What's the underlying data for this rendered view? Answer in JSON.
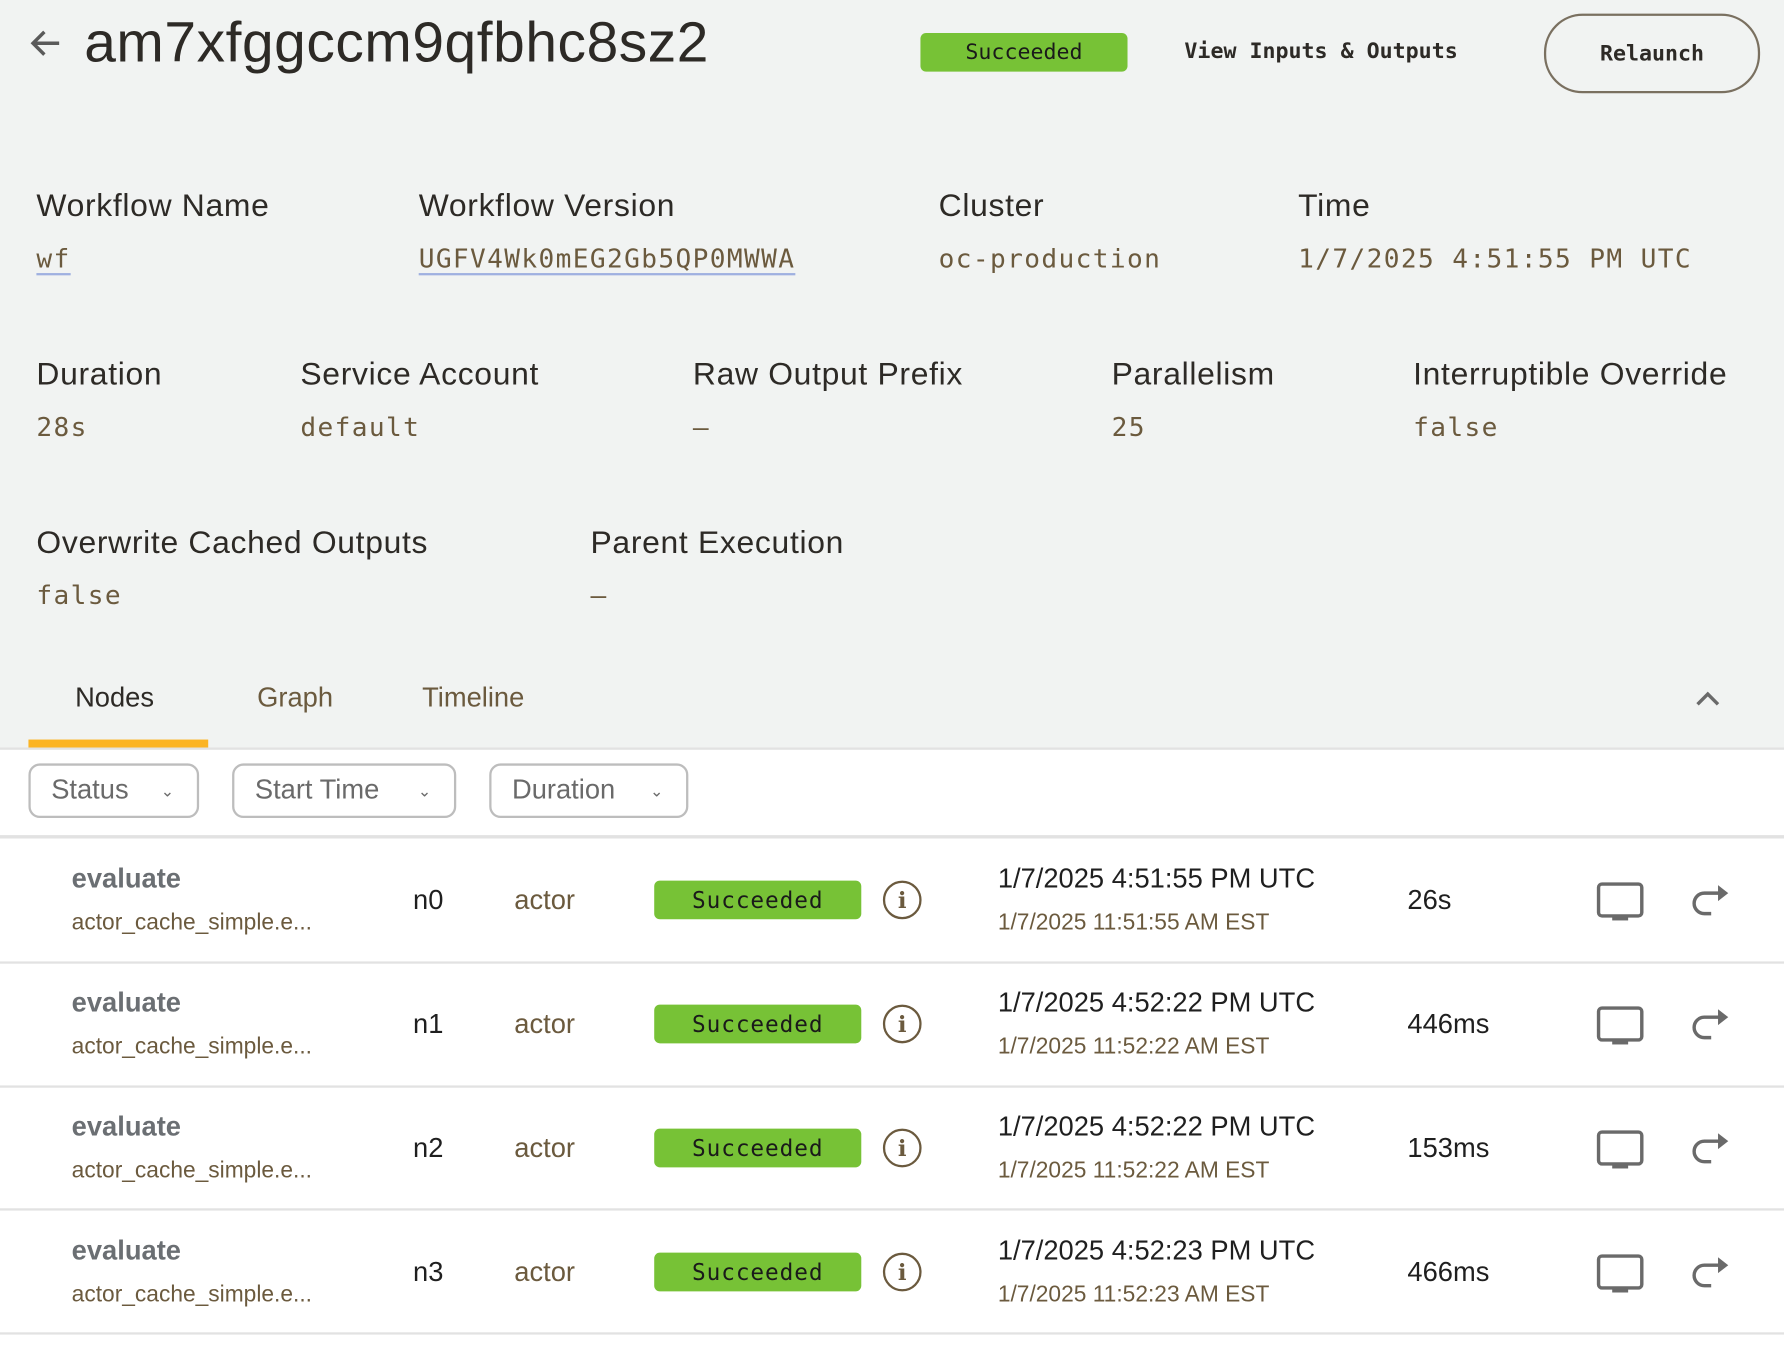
{
  "header": {
    "title": "am7xfggccm9qfbhc8sz2",
    "status": "Succeeded",
    "view_io": "View Inputs & Outputs",
    "relaunch": "Relaunch",
    "status_color": "#77c236"
  },
  "details": [
    {
      "label": "Workflow Name",
      "value": "wf"
    },
    {
      "label": "Workflow Version",
      "value": "UGFV4Wk0mEG2Gb5QP0MWWA"
    },
    {
      "label": "Cluster",
      "value": "oc-production"
    },
    {
      "label": "Time",
      "value": "1/7/2025 4:51:55 PM UTC"
    },
    {
      "label": "Duration",
      "value": "28s"
    },
    {
      "label": "Service Account",
      "value": "default"
    },
    {
      "label": "Raw Output Prefix",
      "value": "–"
    },
    {
      "label": "Parallelism",
      "value": "25"
    },
    {
      "label": "Interruptible Override",
      "value": "false"
    },
    {
      "label": "Overwrite Cached Outputs",
      "value": "false"
    },
    {
      "label": "Parent Execution",
      "value": "–"
    }
  ],
  "tabs": [
    {
      "label": "Nodes",
      "active": true
    },
    {
      "label": "Graph"
    },
    {
      "label": "Timeline"
    }
  ],
  "filters": [
    "Status",
    "Start Time",
    "Duration"
  ],
  "nodes": [
    {
      "name": "evaluate",
      "sub": "actor_cache_simple.e...",
      "id": "n0",
      "type": "actor",
      "status": "Succeeded",
      "time_utc": "1/7/2025 4:51:55 PM UTC",
      "time_local": "1/7/2025 11:51:55 AM EST",
      "duration": "26s"
    },
    {
      "name": "evaluate",
      "sub": "actor_cache_simple.e...",
      "id": "n1",
      "type": "actor",
      "status": "Succeeded",
      "time_utc": "1/7/2025 4:52:22 PM UTC",
      "time_local": "1/7/2025 11:52:22 AM EST",
      "duration": "446ms"
    },
    {
      "name": "evaluate",
      "sub": "actor_cache_simple.e...",
      "id": "n2",
      "type": "actor",
      "status": "Succeeded",
      "time_utc": "1/7/2025 4:52:22 PM UTC",
      "time_local": "1/7/2025 11:52:22 AM EST",
      "duration": "153ms"
    },
    {
      "name": "evaluate",
      "sub": "actor_cache_simple.e...",
      "id": "n3",
      "type": "actor",
      "status": "Succeeded",
      "time_utc": "1/7/2025 4:52:23 PM UTC",
      "time_local": "1/7/2025 11:52:23 AM EST",
      "duration": "466ms"
    }
  ]
}
